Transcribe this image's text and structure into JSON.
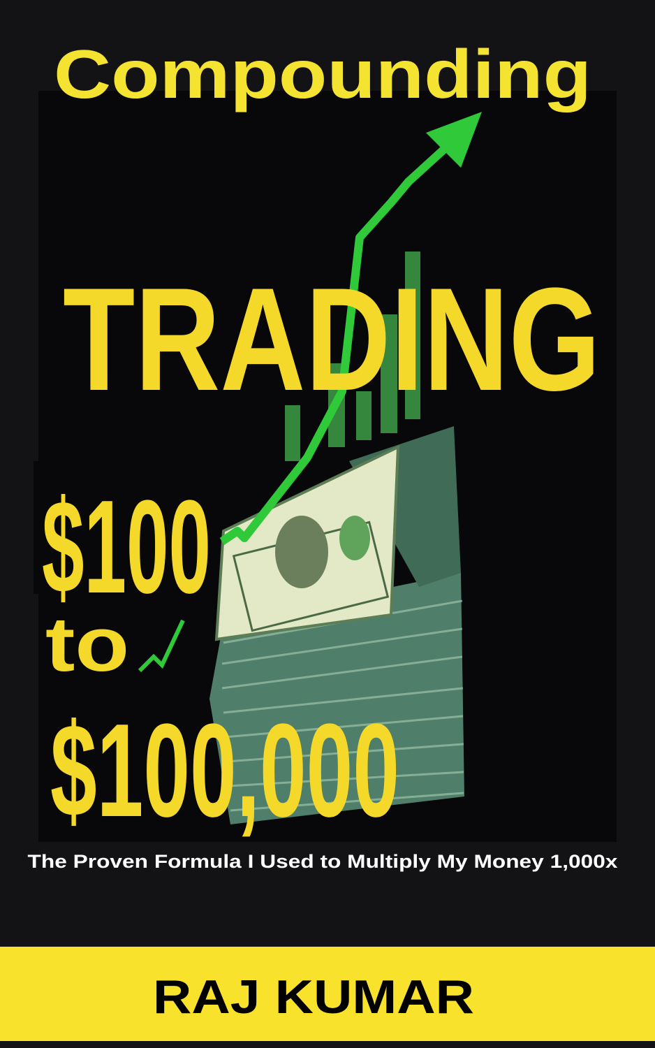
{
  "cover": {
    "title_top": "Compounding",
    "title_main": "TRADING",
    "amount_start": "$100",
    "connector": "to",
    "amount_end": "$100,000",
    "subtitle": "The Proven Formula I Used to Multiply My Money 1,000x",
    "author": "RAJ KUMAR"
  }
}
